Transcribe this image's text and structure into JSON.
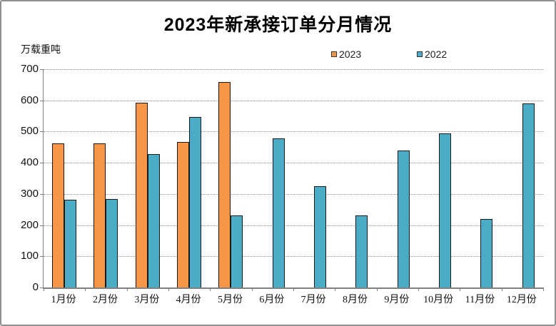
{
  "frame": {
    "background": "#ffffff",
    "border_color": "#8f8f8f"
  },
  "chart_data": {
    "type": "bar",
    "title": "2023年新承接订单分月情况",
    "unit_label": "万载重吨",
    "xlabel": "",
    "ylabel": "万载重吨",
    "categories": [
      "1月份",
      "2月份",
      "3月份",
      "4月份",
      "5月份",
      "6月份",
      "7月份",
      "8月份",
      "9月份",
      "10月份",
      "11月份",
      "12月份"
    ],
    "series": [
      {
        "name": "2023",
        "color": "#F79646",
        "values": [
          462,
          463,
          593,
          467,
          660,
          null,
          null,
          null,
          null,
          null,
          null,
          null
        ]
      },
      {
        "name": "2022",
        "color": "#4BACC6",
        "values": [
          282,
          283,
          428,
          546,
          230,
          477,
          325,
          232,
          440,
          495,
          220,
          591
        ]
      }
    ],
    "ylim": [
      0,
      700
    ],
    "yticks": [
      0,
      100,
      200,
      300,
      400,
      500,
      600,
      700
    ],
    "grid": "horizontal-dotted",
    "legend_position": "top-center",
    "bar_border_color": "#1a1a1a",
    "gridline_color": "#8d8d8d",
    "axis_color": "#808080"
  }
}
